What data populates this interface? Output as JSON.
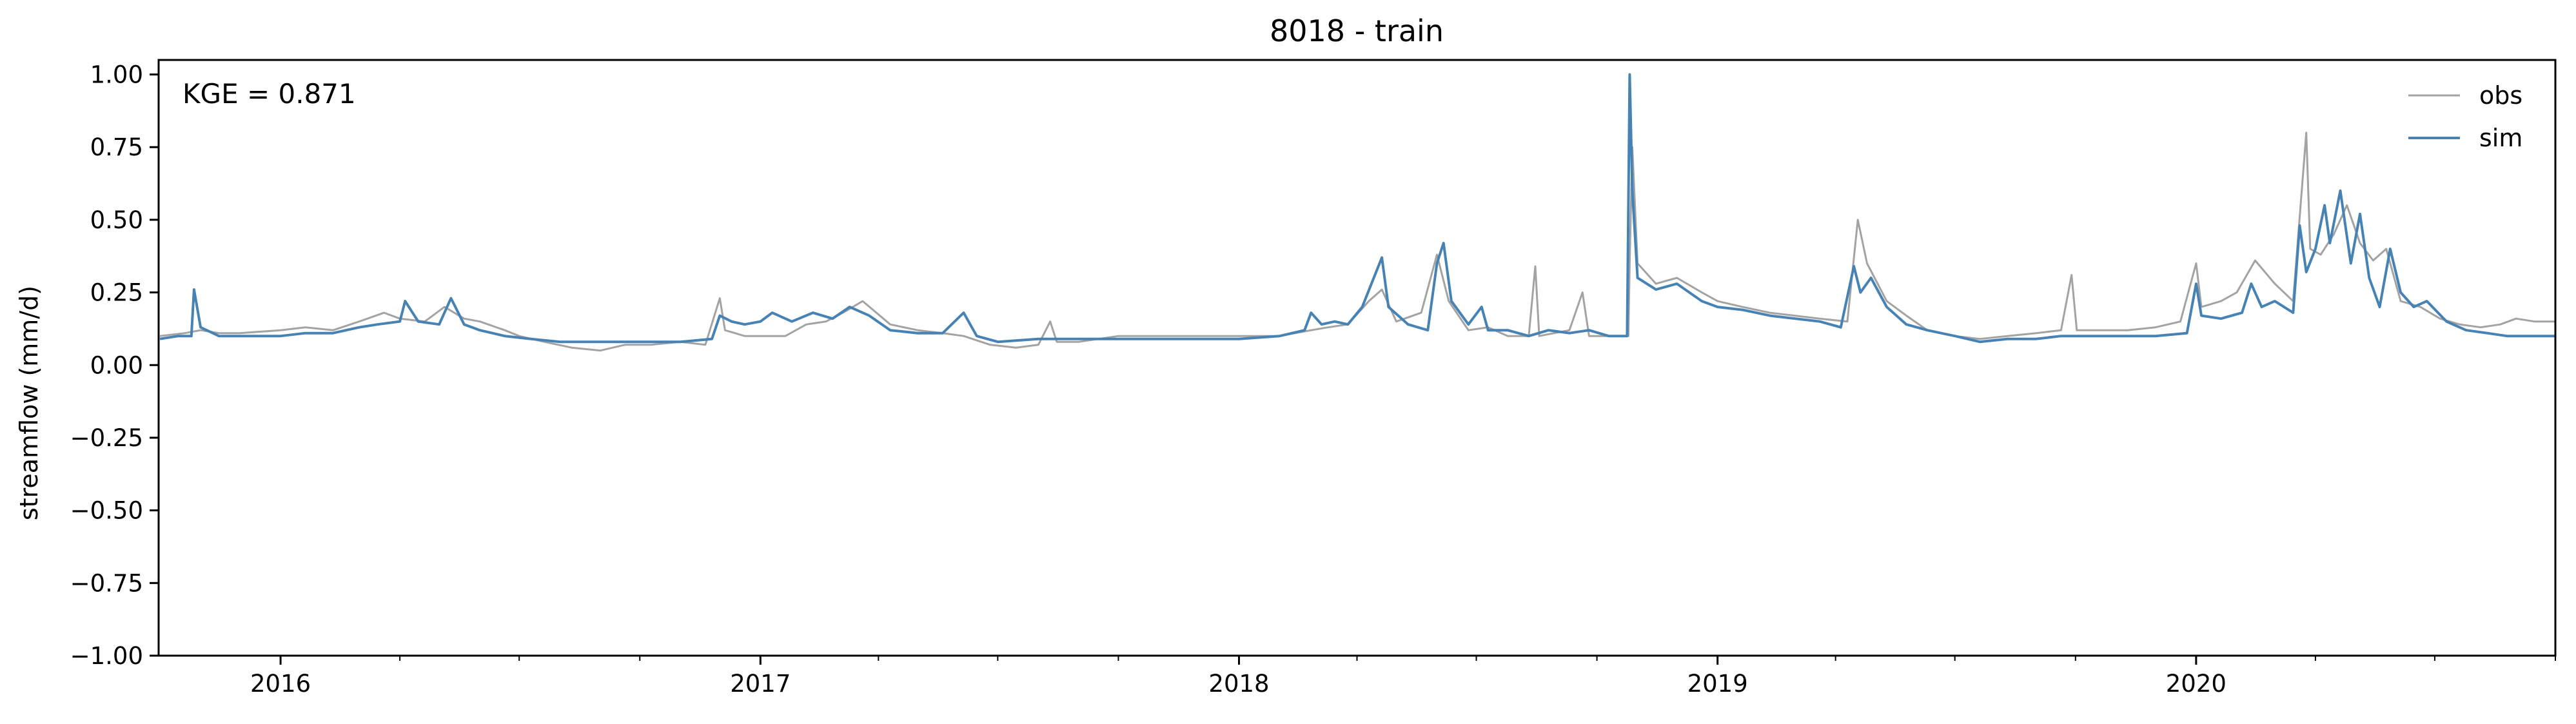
{
  "chart_data": {
    "type": "line",
    "title": "8018 - train",
    "xlabel": "",
    "ylabel": "streamflow (mm/d)",
    "x_range": [
      "2015-09-30",
      "2020-10-01"
    ],
    "ylim": [
      -1.0,
      1.05
    ],
    "grid": false,
    "legend_placement": "top-right",
    "annotation": "KGE = 0.871",
    "annotation_placement": "top-left",
    "x_tick_labels": [
      {
        "date": "2016-01-01",
        "label": "2016"
      },
      {
        "date": "2017-01-01",
        "label": "2017"
      },
      {
        "date": "2018-01-01",
        "label": "2018"
      },
      {
        "date": "2019-01-01",
        "label": "2019"
      },
      {
        "date": "2020-01-01",
        "label": "2020"
      }
    ],
    "x_minor_ticks": [
      "2016-04-01",
      "2016-07-01",
      "2016-10-01",
      "2017-04-01",
      "2017-07-01",
      "2017-10-01",
      "2018-04-01",
      "2018-07-01",
      "2018-10-01",
      "2019-04-01",
      "2019-07-01",
      "2019-10-01",
      "2020-04-01",
      "2020-07-01",
      "2020-10-01"
    ],
    "y_ticks": [
      {
        "value": 1.0,
        "label": "1.00"
      },
      {
        "value": 0.75,
        "label": "0.75"
      },
      {
        "value": 0.5,
        "label": "0.50"
      },
      {
        "value": 0.25,
        "label": "0.25"
      },
      {
        "value": 0.0,
        "label": "0.00"
      },
      {
        "value": -0.25,
        "label": "−0.25"
      },
      {
        "value": -0.5,
        "label": "−0.50"
      },
      {
        "value": -0.75,
        "label": "−0.75"
      },
      {
        "value": -1.0,
        "label": "−1.00"
      }
    ],
    "series": [
      {
        "name": "obs",
        "color": "#a3a3a3",
        "points": [
          [
            "2015-10-01",
            0.1
          ],
          [
            "2015-10-20",
            0.11
          ],
          [
            "2015-11-01",
            0.12
          ],
          [
            "2015-11-15",
            0.11
          ],
          [
            "2015-12-01",
            0.11
          ],
          [
            "2016-01-01",
            0.12
          ],
          [
            "2016-01-20",
            0.13
          ],
          [
            "2016-02-10",
            0.12
          ],
          [
            "2016-03-01",
            0.15
          ],
          [
            "2016-03-20",
            0.18
          ],
          [
            "2016-04-01",
            0.16
          ],
          [
            "2016-04-20",
            0.15
          ],
          [
            "2016-05-05",
            0.2
          ],
          [
            "2016-05-20",
            0.16
          ],
          [
            "2016-06-01",
            0.15
          ],
          [
            "2016-06-20",
            0.12
          ],
          [
            "2016-07-01",
            0.1
          ],
          [
            "2016-07-20",
            0.08
          ],
          [
            "2016-08-10",
            0.06
          ],
          [
            "2016-09-01",
            0.05
          ],
          [
            "2016-09-20",
            0.07
          ],
          [
            "2016-10-10",
            0.07
          ],
          [
            "2016-11-01",
            0.08
          ],
          [
            "2016-11-20",
            0.07
          ],
          [
            "2016-12-01",
            0.23
          ],
          [
            "2016-12-05",
            0.12
          ],
          [
            "2016-12-20",
            0.1
          ],
          [
            "2017-01-01",
            0.1
          ],
          [
            "2017-01-20",
            0.1
          ],
          [
            "2017-02-05",
            0.14
          ],
          [
            "2017-02-20",
            0.15
          ],
          [
            "2017-03-05",
            0.18
          ],
          [
            "2017-03-20",
            0.22
          ],
          [
            "2017-04-10",
            0.14
          ],
          [
            "2017-05-01",
            0.12
          ],
          [
            "2017-05-20",
            0.11
          ],
          [
            "2017-06-05",
            0.1
          ],
          [
            "2017-06-25",
            0.07
          ],
          [
            "2017-07-15",
            0.06
          ],
          [
            "2017-08-01",
            0.07
          ],
          [
            "2017-08-10",
            0.15
          ],
          [
            "2017-08-15",
            0.08
          ],
          [
            "2017-09-01",
            0.08
          ],
          [
            "2017-10-01",
            0.1
          ],
          [
            "2017-11-01",
            0.1
          ],
          [
            "2017-12-01",
            0.1
          ],
          [
            "2018-01-01",
            0.1
          ],
          [
            "2018-02-01",
            0.1
          ],
          [
            "2018-02-25",
            0.12
          ],
          [
            "2018-03-10",
            0.13
          ],
          [
            "2018-03-25",
            0.14
          ],
          [
            "2018-04-10",
            0.22
          ],
          [
            "2018-04-20",
            0.26
          ],
          [
            "2018-05-01",
            0.15
          ],
          [
            "2018-05-20",
            0.18
          ],
          [
            "2018-06-01",
            0.38
          ],
          [
            "2018-06-10",
            0.22
          ],
          [
            "2018-06-25",
            0.12
          ],
          [
            "2018-07-10",
            0.13
          ],
          [
            "2018-07-25",
            0.1
          ],
          [
            "2018-08-10",
            0.1
          ],
          [
            "2018-08-15",
            0.34
          ],
          [
            "2018-08-18",
            0.1
          ],
          [
            "2018-09-10",
            0.12
          ],
          [
            "2018-09-20",
            0.25
          ],
          [
            "2018-09-25",
            0.1
          ],
          [
            "2018-10-15",
            0.1
          ],
          [
            "2018-10-25",
            0.1
          ],
          [
            "2018-10-26",
            0.35
          ],
          [
            "2018-10-28",
            0.75
          ],
          [
            "2018-11-01",
            0.35
          ],
          [
            "2018-11-15",
            0.28
          ],
          [
            "2018-12-01",
            0.3
          ],
          [
            "2018-12-20",
            0.25
          ],
          [
            "2019-01-01",
            0.22
          ],
          [
            "2019-01-20",
            0.2
          ],
          [
            "2019-02-10",
            0.18
          ],
          [
            "2019-03-01",
            0.17
          ],
          [
            "2019-03-20",
            0.16
          ],
          [
            "2019-04-10",
            0.15
          ],
          [
            "2019-04-18",
            0.5
          ],
          [
            "2019-04-25",
            0.35
          ],
          [
            "2019-05-10",
            0.22
          ],
          [
            "2019-05-25",
            0.17
          ],
          [
            "2019-06-10",
            0.12
          ],
          [
            "2019-07-01",
            0.1
          ],
          [
            "2019-07-20",
            0.09
          ],
          [
            "2019-08-10",
            0.1
          ],
          [
            "2019-09-01",
            0.11
          ],
          [
            "2019-09-20",
            0.12
          ],
          [
            "2019-09-28",
            0.31
          ],
          [
            "2019-10-02",
            0.12
          ],
          [
            "2019-10-20",
            0.12
          ],
          [
            "2019-11-10",
            0.12
          ],
          [
            "2019-12-01",
            0.13
          ],
          [
            "2019-12-20",
            0.15
          ],
          [
            "2020-01-01",
            0.35
          ],
          [
            "2020-01-05",
            0.2
          ],
          [
            "2020-01-20",
            0.22
          ],
          [
            "2020-02-01",
            0.25
          ],
          [
            "2020-02-15",
            0.36
          ],
          [
            "2020-03-01",
            0.28
          ],
          [
            "2020-03-15",
            0.22
          ],
          [
            "2020-03-25",
            0.8
          ],
          [
            "2020-03-28",
            0.4
          ],
          [
            "2020-04-05",
            0.38
          ],
          [
            "2020-04-15",
            0.45
          ],
          [
            "2020-04-25",
            0.55
          ],
          [
            "2020-05-05",
            0.42
          ],
          [
            "2020-05-15",
            0.36
          ],
          [
            "2020-05-25",
            0.4
          ],
          [
            "2020-06-05",
            0.22
          ],
          [
            "2020-06-20",
            0.2
          ],
          [
            "2020-07-05",
            0.16
          ],
          [
            "2020-07-20",
            0.14
          ],
          [
            "2020-08-05",
            0.13
          ],
          [
            "2020-08-20",
            0.14
          ],
          [
            "2020-09-01",
            0.16
          ],
          [
            "2020-09-15",
            0.15
          ],
          [
            "2020-10-01",
            0.15
          ]
        ]
      },
      {
        "name": "sim",
        "color": "#4682b4",
        "points": [
          [
            "2015-10-01",
            0.09
          ],
          [
            "2015-10-15",
            0.1
          ],
          [
            "2015-10-25",
            0.1
          ],
          [
            "2015-10-27",
            0.26
          ],
          [
            "2015-11-01",
            0.13
          ],
          [
            "2015-11-15",
            0.1
          ],
          [
            "2015-12-01",
            0.1
          ],
          [
            "2016-01-01",
            0.1
          ],
          [
            "2016-01-20",
            0.11
          ],
          [
            "2016-02-10",
            0.11
          ],
          [
            "2016-03-01",
            0.13
          ],
          [
            "2016-03-15",
            0.14
          ],
          [
            "2016-04-01",
            0.15
          ],
          [
            "2016-04-05",
            0.22
          ],
          [
            "2016-04-15",
            0.15
          ],
          [
            "2016-05-01",
            0.14
          ],
          [
            "2016-05-10",
            0.23
          ],
          [
            "2016-05-20",
            0.14
          ],
          [
            "2016-06-01",
            0.12
          ],
          [
            "2016-06-20",
            0.1
          ],
          [
            "2016-07-10",
            0.09
          ],
          [
            "2016-08-01",
            0.08
          ],
          [
            "2016-09-01",
            0.08
          ],
          [
            "2016-10-01",
            0.08
          ],
          [
            "2016-11-01",
            0.08
          ],
          [
            "2016-11-25",
            0.09
          ],
          [
            "2016-12-01",
            0.17
          ],
          [
            "2016-12-10",
            0.15
          ],
          [
            "2016-12-20",
            0.14
          ],
          [
            "2017-01-01",
            0.15
          ],
          [
            "2017-01-10",
            0.18
          ],
          [
            "2017-01-25",
            0.15
          ],
          [
            "2017-02-10",
            0.18
          ],
          [
            "2017-02-25",
            0.16
          ],
          [
            "2017-03-10",
            0.2
          ],
          [
            "2017-03-25",
            0.17
          ],
          [
            "2017-04-10",
            0.12
          ],
          [
            "2017-05-01",
            0.11
          ],
          [
            "2017-05-20",
            0.11
          ],
          [
            "2017-06-05",
            0.18
          ],
          [
            "2017-06-15",
            0.1
          ],
          [
            "2017-07-01",
            0.08
          ],
          [
            "2017-08-01",
            0.09
          ],
          [
            "2017-09-01",
            0.09
          ],
          [
            "2017-10-01",
            0.09
          ],
          [
            "2017-11-01",
            0.09
          ],
          [
            "2017-12-01",
            0.09
          ],
          [
            "2018-01-01",
            0.09
          ],
          [
            "2018-02-01",
            0.1
          ],
          [
            "2018-02-20",
            0.12
          ],
          [
            "2018-02-25",
            0.18
          ],
          [
            "2018-03-05",
            0.14
          ],
          [
            "2018-03-15",
            0.15
          ],
          [
            "2018-03-25",
            0.14
          ],
          [
            "2018-04-05",
            0.2
          ],
          [
            "2018-04-12",
            0.28
          ],
          [
            "2018-04-20",
            0.37
          ],
          [
            "2018-04-25",
            0.2
          ],
          [
            "2018-05-10",
            0.14
          ],
          [
            "2018-05-25",
            0.12
          ],
          [
            "2018-06-01",
            0.35
          ],
          [
            "2018-06-06",
            0.42
          ],
          [
            "2018-06-12",
            0.22
          ],
          [
            "2018-06-25",
            0.14
          ],
          [
            "2018-07-05",
            0.2
          ],
          [
            "2018-07-10",
            0.12
          ],
          [
            "2018-07-25",
            0.12
          ],
          [
            "2018-08-10",
            0.1
          ],
          [
            "2018-08-25",
            0.12
          ],
          [
            "2018-09-10",
            0.11
          ],
          [
            "2018-09-25",
            0.12
          ],
          [
            "2018-10-10",
            0.1
          ],
          [
            "2018-10-24",
            0.1
          ],
          [
            "2018-10-26",
            1.0
          ],
          [
            "2018-10-28",
            0.6
          ],
          [
            "2018-11-01",
            0.3
          ],
          [
            "2018-11-15",
            0.26
          ],
          [
            "2018-12-01",
            0.28
          ],
          [
            "2018-12-20",
            0.22
          ],
          [
            "2019-01-01",
            0.2
          ],
          [
            "2019-01-20",
            0.19
          ],
          [
            "2019-02-10",
            0.17
          ],
          [
            "2019-03-01",
            0.16
          ],
          [
            "2019-03-20",
            0.15
          ],
          [
            "2019-04-05",
            0.13
          ],
          [
            "2019-04-15",
            0.34
          ],
          [
            "2019-04-20",
            0.25
          ],
          [
            "2019-04-28",
            0.3
          ],
          [
            "2019-05-10",
            0.2
          ],
          [
            "2019-05-25",
            0.14
          ],
          [
            "2019-06-10",
            0.12
          ],
          [
            "2019-07-01",
            0.1
          ],
          [
            "2019-07-20",
            0.08
          ],
          [
            "2019-08-10",
            0.09
          ],
          [
            "2019-09-01",
            0.09
          ],
          [
            "2019-09-20",
            0.1
          ],
          [
            "2019-10-15",
            0.1
          ],
          [
            "2019-11-10",
            0.1
          ],
          [
            "2019-12-01",
            0.1
          ],
          [
            "2019-12-25",
            0.11
          ],
          [
            "2020-01-01",
            0.28
          ],
          [
            "2020-01-05",
            0.17
          ],
          [
            "2020-01-20",
            0.16
          ],
          [
            "2020-02-05",
            0.18
          ],
          [
            "2020-02-12",
            0.28
          ],
          [
            "2020-02-20",
            0.2
          ],
          [
            "2020-03-01",
            0.22
          ],
          [
            "2020-03-15",
            0.18
          ],
          [
            "2020-03-20",
            0.48
          ],
          [
            "2020-03-25",
            0.32
          ],
          [
            "2020-04-01",
            0.4
          ],
          [
            "2020-04-08",
            0.55
          ],
          [
            "2020-04-12",
            0.42
          ],
          [
            "2020-04-20",
            0.6
          ],
          [
            "2020-04-28",
            0.35
          ],
          [
            "2020-05-05",
            0.52
          ],
          [
            "2020-05-12",
            0.3
          ],
          [
            "2020-05-20",
            0.2
          ],
          [
            "2020-05-28",
            0.4
          ],
          [
            "2020-06-05",
            0.25
          ],
          [
            "2020-06-15",
            0.2
          ],
          [
            "2020-06-25",
            0.22
          ],
          [
            "2020-07-10",
            0.15
          ],
          [
            "2020-07-25",
            0.12
          ],
          [
            "2020-08-10",
            0.11
          ],
          [
            "2020-08-25",
            0.1
          ],
          [
            "2020-09-10",
            0.1
          ],
          [
            "2020-09-25",
            0.1
          ],
          [
            "2020-10-01",
            0.1
          ]
        ]
      }
    ]
  }
}
